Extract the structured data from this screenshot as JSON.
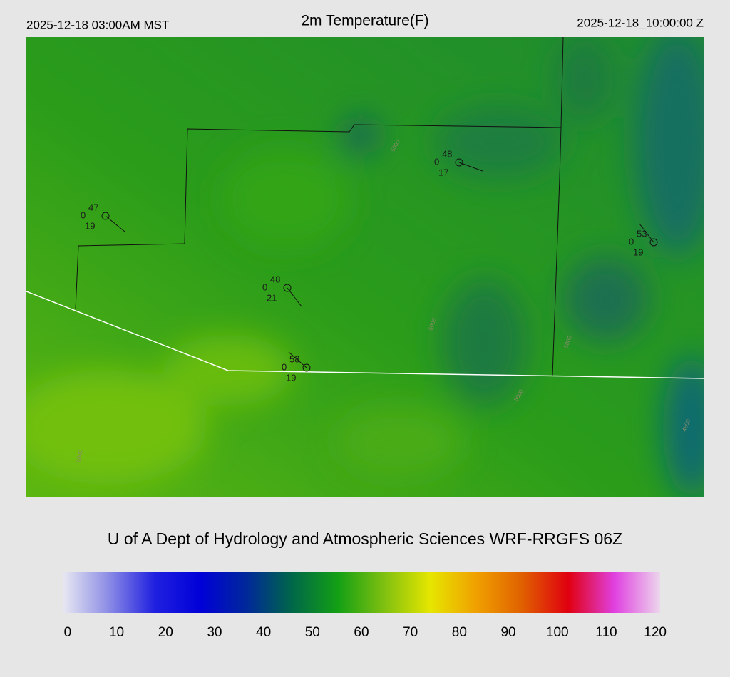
{
  "header": {
    "left": "2025-12-18 03:00AM MST",
    "title": "2m Temperature(F)",
    "right": "2025-12-18_10:00:00 Z"
  },
  "stations": [
    {
      "temperature": 47,
      "wind": 0,
      "dewpoint": 19
    },
    {
      "temperature": 48,
      "wind": 0,
      "dewpoint": 17
    },
    {
      "temperature": 53,
      "wind": 0,
      "dewpoint": 19
    },
    {
      "temperature": 48,
      "wind": 0,
      "dewpoint": 21
    },
    {
      "temperature": 58,
      "wind": 0,
      "dewpoint": 19
    }
  ],
  "contour_labels": [
    "5000",
    "5000",
    "5000",
    "4500",
    "6000",
    "5000"
  ],
  "credit": "U of A Dept of Hydrology and Atmospheric Sciences WRF-RRGFS 06Z",
  "colorbar": {
    "lim": [
      -1,
      121
    ],
    "ticks": [
      0,
      10,
      20,
      30,
      40,
      50,
      60,
      70,
      80,
      90,
      100,
      110,
      120
    ],
    "colors": [
      "#e8e8f2",
      "#8c8ce6",
      "#2020e0",
      "#0000d8",
      "#00289a",
      "#006848",
      "#14a014",
      "#80c010",
      "#e6e600",
      "#f0a000",
      "#e06000",
      "#e00010",
      "#e040e0",
      "#ecd6ec"
    ]
  }
}
